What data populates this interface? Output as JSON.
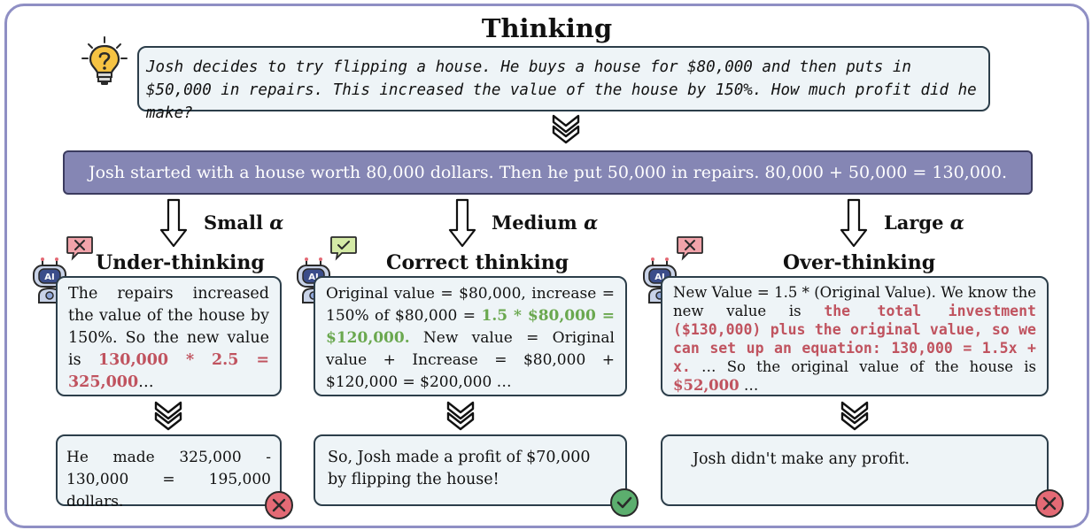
{
  "title": "Thinking",
  "question": "Josh decides to try flipping a house.  He buys a house for $80,000 and then puts in $50,000 in repairs.  This increased the value of the house by 150%.  How much profit did he make?",
  "prefix": "Josh started with a house worth 80,000 dollars. Then he put 50,000 in repairs. 80,000 + 50,000 = 130,000.",
  "robot_badge": "AI",
  "columns": [
    {
      "alpha_label": "Small",
      "alpha_symbol": "α",
      "heading": "Under-thinking",
      "thinking": {
        "text_1": "The repairs increased the value of the house by 150%. So the new value is ",
        "highlight_1": "130,000 * 2.5 = 325,000",
        "text_2": "…"
      },
      "answer": "He made 325,000 - 130,000 = 195,000 dollars.",
      "verdict": "incorrect"
    },
    {
      "alpha_label": "Medium",
      "alpha_symbol": "α",
      "heading": "Correct thinking",
      "thinking": {
        "text_1": "Original value = $80,000, increase = 150% of $80,000 = ",
        "highlight_1": "1.5 * $80,000 = $120,000.",
        "text_2": " New value = Original value + Increase = $80,000 + $120,000 = $200,000 …"
      },
      "answer": "So, Josh made a profit of $70,000 by flipping the house!",
      "verdict": "correct"
    },
    {
      "alpha_label": "Large",
      "alpha_symbol": "α",
      "heading": "Over-thinking",
      "thinking": {
        "text_1": "New Value = 1.5 * (Original Value). We know the new value is ",
        "highlight_1": "the total investment ($130,000) plus the original value, so we can set up an equation: 130,000 = 1.5x + x.",
        "text_2": " … So the original value of the house is ",
        "highlight_2": "$52,000",
        "text_3": " …"
      },
      "answer": "Josh didn't make any profit.",
      "verdict": "incorrect"
    }
  ],
  "colors": {
    "frame": "#8f8fc4",
    "prefix_bg": "#8586b4",
    "box_bg": "#eef4f7",
    "highlight_red": "#c0535f",
    "highlight_green": "#6aa84f",
    "check_green": "#5cae6e",
    "cross_red": "#e46a75",
    "bulb_yellow": "#f6c343"
  }
}
